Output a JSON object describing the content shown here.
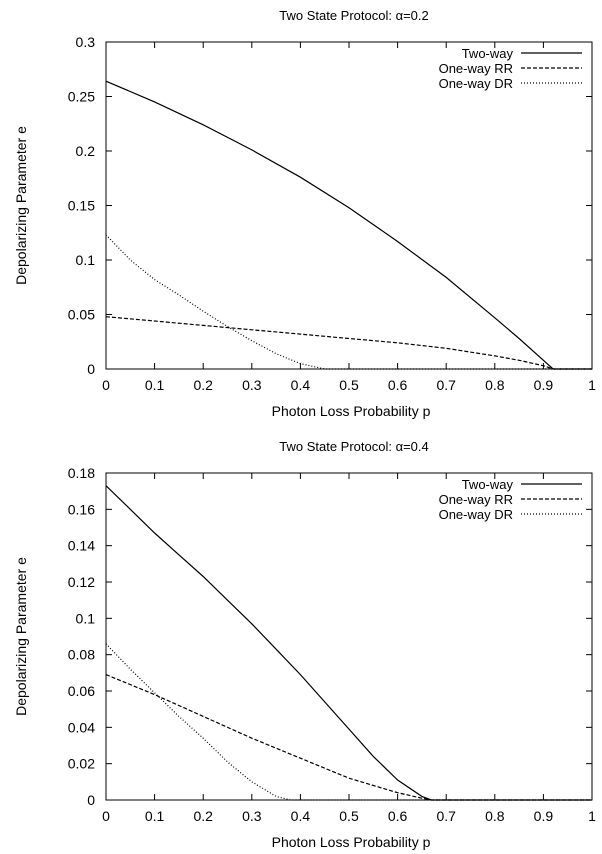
{
  "chart_data": [
    {
      "type": "line",
      "title": "Two State Protocol: α=0.2",
      "xlabel": "Photon Loss Probability p",
      "ylabel": "Depolarizing Parameter e",
      "xlim": [
        0,
        1
      ],
      "ylim": [
        0,
        0.3
      ],
      "xticks": [
        0,
        0.1,
        0.2,
        0.3,
        0.4,
        0.5,
        0.6,
        0.7,
        0.8,
        0.9,
        1
      ],
      "xtick_labels": [
        "0",
        "0.1",
        "0.2",
        "0.3",
        "0.4",
        "0.5",
        "0.6",
        "0.7",
        "0.8",
        "0.9",
        "1"
      ],
      "yticks": [
        0,
        0.05,
        0.1,
        0.15,
        0.2,
        0.25,
        0.3
      ],
      "ytick_labels": [
        "0",
        "0.05",
        "0.1",
        "0.15",
        "0.2",
        "0.25",
        "0.3"
      ],
      "grid": false,
      "legend_position": "top-right",
      "series": [
        {
          "name": "Two-way",
          "style": "solid",
          "x": [
            0,
            0.1,
            0.2,
            0.3,
            0.4,
            0.5,
            0.6,
            0.7,
            0.8,
            0.85,
            0.9,
            0.92,
            1
          ],
          "y": [
            0.264,
            0.245,
            0.224,
            0.201,
            0.176,
            0.148,
            0.117,
            0.084,
            0.047,
            0.028,
            0.008,
            0,
            0
          ]
        },
        {
          "name": "One-way RR",
          "style": "dashed",
          "x": [
            0,
            0.1,
            0.2,
            0.3,
            0.4,
            0.5,
            0.6,
            0.7,
            0.8,
            0.85,
            0.9,
            0.92,
            1
          ],
          "y": [
            0.048,
            0.044,
            0.04,
            0.036,
            0.032,
            0.028,
            0.024,
            0.019,
            0.012,
            0.008,
            0.003,
            0,
            0
          ]
        },
        {
          "name": "One-way DR",
          "style": "dotted",
          "x": [
            0,
            0.05,
            0.1,
            0.15,
            0.2,
            0.25,
            0.3,
            0.35,
            0.4,
            0.45,
            0.5,
            1
          ],
          "y": [
            0.123,
            0.1,
            0.082,
            0.068,
            0.053,
            0.039,
            0.026,
            0.014,
            0.005,
            0,
            0,
            0
          ]
        }
      ]
    },
    {
      "type": "line",
      "title": "Two State Protocol: α=0.4",
      "xlabel": "Photon Loss Probability p",
      "ylabel": "Depolarizing Parameter e",
      "xlim": [
        0,
        1
      ],
      "ylim": [
        0,
        0.18
      ],
      "xticks": [
        0,
        0.1,
        0.2,
        0.3,
        0.4,
        0.5,
        0.6,
        0.7,
        0.8,
        0.9,
        1
      ],
      "xtick_labels": [
        "0",
        "0.1",
        "0.2",
        "0.3",
        "0.4",
        "0.5",
        "0.6",
        "0.7",
        "0.8",
        "0.9",
        "1"
      ],
      "yticks": [
        0,
        0.02,
        0.04,
        0.06,
        0.08,
        0.1,
        0.12,
        0.14,
        0.16,
        0.18
      ],
      "ytick_labels": [
        "0",
        "0.02",
        "0.04",
        "0.06",
        "0.08",
        "0.1",
        "0.12",
        "0.14",
        "0.16",
        "0.18"
      ],
      "grid": false,
      "legend_position": "top-right",
      "series": [
        {
          "name": "Two-way",
          "style": "solid",
          "x": [
            0,
            0.05,
            0.1,
            0.15,
            0.2,
            0.25,
            0.3,
            0.35,
            0.4,
            0.45,
            0.5,
            0.55,
            0.6,
            0.65,
            0.67,
            1
          ],
          "y": [
            0.173,
            0.16,
            0.147,
            0.135,
            0.123,
            0.11,
            0.097,
            0.083,
            0.069,
            0.054,
            0.039,
            0.024,
            0.011,
            0.002,
            0,
            0
          ]
        },
        {
          "name": "One-way RR",
          "style": "dashed",
          "x": [
            0,
            0.1,
            0.2,
            0.3,
            0.4,
            0.5,
            0.6,
            0.65,
            0.67,
            1
          ],
          "y": [
            0.069,
            0.058,
            0.046,
            0.034,
            0.023,
            0.012,
            0.004,
            0.001,
            0,
            0
          ]
        },
        {
          "name": "One-way DR",
          "style": "dotted",
          "x": [
            0,
            0.05,
            0.1,
            0.15,
            0.2,
            0.25,
            0.3,
            0.35,
            0.38,
            1
          ],
          "y": [
            0.086,
            0.072,
            0.059,
            0.046,
            0.034,
            0.021,
            0.01,
            0.002,
            0,
            0
          ]
        }
      ]
    }
  ]
}
